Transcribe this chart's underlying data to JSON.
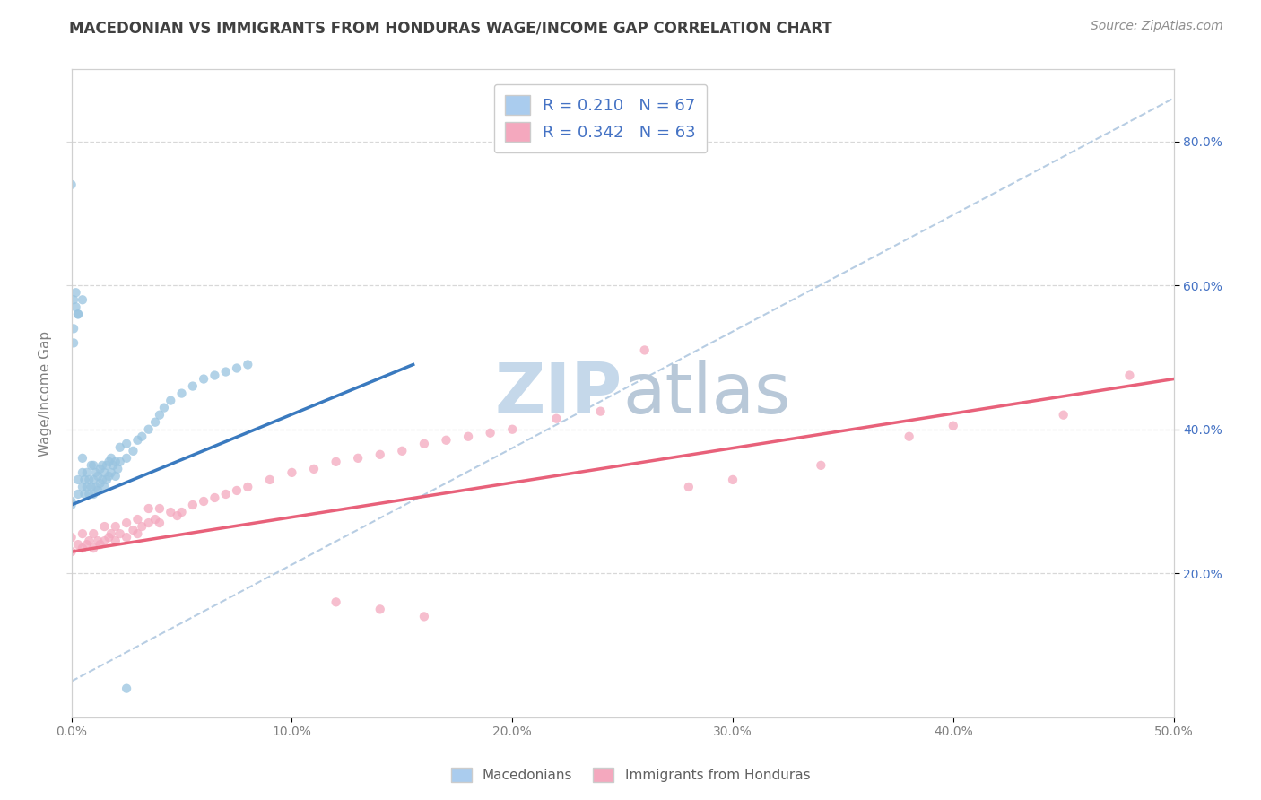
{
  "title": "MACEDONIAN VS IMMIGRANTS FROM HONDURAS WAGE/INCOME GAP CORRELATION CHART",
  "source": "Source: ZipAtlas.com",
  "ylabel": "Wage/Income Gap",
  "xmin": 0.0,
  "xmax": 0.5,
  "ymin": 0.0,
  "ymax": 0.9,
  "xtick_labels": [
    "0.0%",
    "",
    "10.0%",
    "",
    "20.0%",
    "",
    "30.0%",
    "",
    "40.0%",
    "",
    "50.0%"
  ],
  "xtick_vals": [
    0.0,
    0.05,
    0.1,
    0.15,
    0.2,
    0.25,
    0.3,
    0.35,
    0.4,
    0.45,
    0.5
  ],
  "ytick_vals_left": [],
  "ytick_vals_right": [
    0.2,
    0.4,
    0.6,
    0.8
  ],
  "ytick_labels_right": [
    "20.0%",
    "40.0%",
    "60.0%",
    "80.0%"
  ],
  "blue_color": "#99c4e0",
  "pink_color": "#f4a8be",
  "blue_line_color": "#3a7abf",
  "pink_line_color": "#e8617a",
  "diag_line_color": "#b0c8e0",
  "watermark_zip_color": "#c5d8ea",
  "watermark_atlas_color": "#b8c8d8",
  "legend_blue_R": "0.210",
  "legend_blue_N": "67",
  "legend_pink_R": "0.342",
  "legend_pink_N": "63",
  "background_color": "#ffffff",
  "title_color": "#404040",
  "title_fontsize": 12,
  "grid_color": "#d8d8d8",
  "tick_color": "#808080",
  "right_tick_color": "#4472c4",
  "blue_trend_x": [
    0.0,
    0.155
  ],
  "blue_trend_y": [
    0.295,
    0.49
  ],
  "pink_trend_x": [
    0.0,
    0.5
  ],
  "pink_trend_y": [
    0.23,
    0.47
  ],
  "diag_trend_x": [
    0.0,
    0.5
  ],
  "diag_trend_y": [
    0.05,
    0.86
  ],
  "blue_scatter_x": [
    0.0,
    0.0,
    0.003,
    0.003,
    0.005,
    0.005,
    0.005,
    0.006,
    0.006,
    0.007,
    0.007,
    0.008,
    0.008,
    0.009,
    0.009,
    0.01,
    0.01,
    0.01,
    0.011,
    0.011,
    0.012,
    0.012,
    0.013,
    0.013,
    0.014,
    0.014,
    0.015,
    0.015,
    0.016,
    0.016,
    0.017,
    0.017,
    0.018,
    0.018,
    0.019,
    0.02,
    0.02,
    0.021,
    0.022,
    0.022,
    0.025,
    0.025,
    0.028,
    0.03,
    0.032,
    0.035,
    0.038,
    0.04,
    0.042,
    0.045,
    0.05,
    0.055,
    0.06,
    0.065,
    0.07,
    0.075,
    0.08,
    0.005,
    0.003,
    0.002,
    0.001,
    0.001,
    0.0,
    0.001,
    0.002,
    0.003,
    0.025
  ],
  "blue_scatter_y": [
    0.295,
    0.3,
    0.31,
    0.33,
    0.32,
    0.34,
    0.36,
    0.31,
    0.33,
    0.32,
    0.34,
    0.31,
    0.33,
    0.32,
    0.35,
    0.31,
    0.33,
    0.35,
    0.32,
    0.34,
    0.315,
    0.335,
    0.325,
    0.345,
    0.33,
    0.35,
    0.32,
    0.34,
    0.33,
    0.35,
    0.335,
    0.355,
    0.34,
    0.36,
    0.35,
    0.335,
    0.355,
    0.345,
    0.355,
    0.375,
    0.36,
    0.38,
    0.37,
    0.385,
    0.39,
    0.4,
    0.41,
    0.42,
    0.43,
    0.44,
    0.45,
    0.46,
    0.47,
    0.475,
    0.48,
    0.485,
    0.49,
    0.58,
    0.56,
    0.57,
    0.54,
    0.52,
    0.74,
    0.58,
    0.59,
    0.56,
    0.04
  ],
  "pink_scatter_x": [
    0.0,
    0.0,
    0.003,
    0.005,
    0.005,
    0.007,
    0.008,
    0.01,
    0.01,
    0.012,
    0.013,
    0.015,
    0.015,
    0.017,
    0.018,
    0.02,
    0.02,
    0.022,
    0.025,
    0.025,
    0.028,
    0.03,
    0.03,
    0.032,
    0.035,
    0.035,
    0.038,
    0.04,
    0.04,
    0.045,
    0.048,
    0.05,
    0.055,
    0.06,
    0.065,
    0.07,
    0.075,
    0.08,
    0.09,
    0.1,
    0.11,
    0.12,
    0.13,
    0.14,
    0.15,
    0.16,
    0.17,
    0.18,
    0.19,
    0.2,
    0.22,
    0.24,
    0.26,
    0.28,
    0.3,
    0.34,
    0.38,
    0.4,
    0.45,
    0.48,
    0.12,
    0.14,
    0.16
  ],
  "pink_scatter_y": [
    0.23,
    0.25,
    0.24,
    0.235,
    0.255,
    0.24,
    0.245,
    0.235,
    0.255,
    0.245,
    0.24,
    0.245,
    0.265,
    0.25,
    0.255,
    0.245,
    0.265,
    0.255,
    0.25,
    0.27,
    0.26,
    0.255,
    0.275,
    0.265,
    0.27,
    0.29,
    0.275,
    0.27,
    0.29,
    0.285,
    0.28,
    0.285,
    0.295,
    0.3,
    0.305,
    0.31,
    0.315,
    0.32,
    0.33,
    0.34,
    0.345,
    0.355,
    0.36,
    0.365,
    0.37,
    0.38,
    0.385,
    0.39,
    0.395,
    0.4,
    0.415,
    0.425,
    0.51,
    0.32,
    0.33,
    0.35,
    0.39,
    0.405,
    0.42,
    0.475,
    0.16,
    0.15,
    0.14
  ],
  "legend_blue_facecolor": "#aaccee",
  "legend_pink_facecolor": "#f4a8be"
}
